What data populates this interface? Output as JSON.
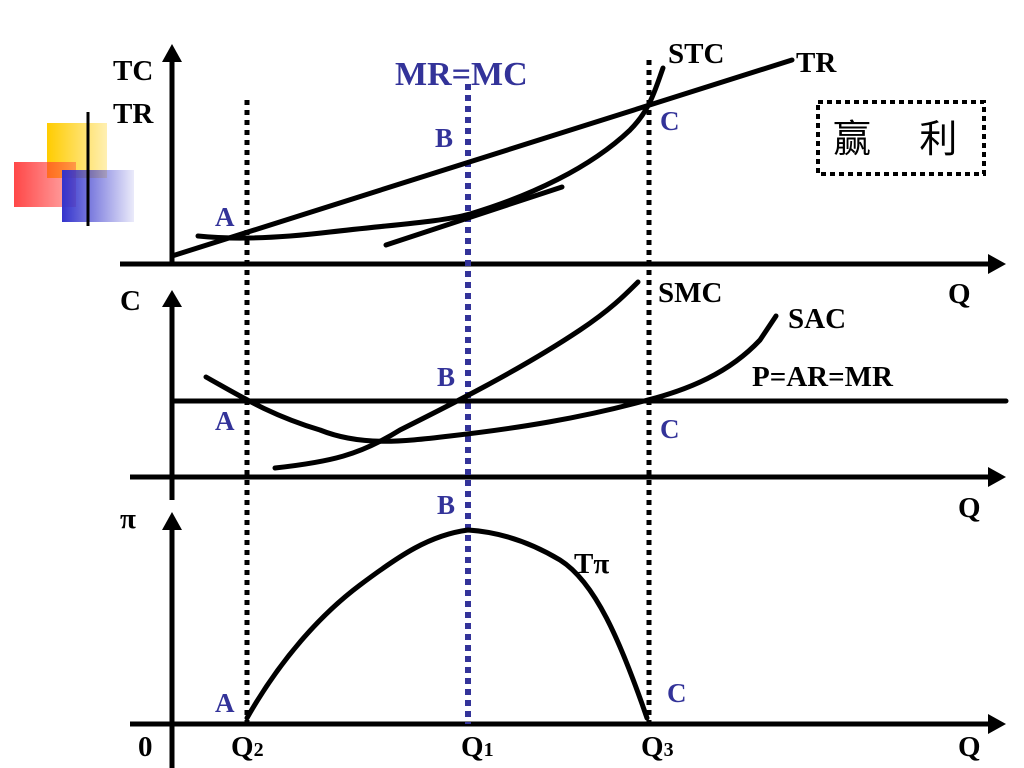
{
  "slide": {
    "title_box": "赢    利",
    "mr_mc_label": "MR=MC"
  },
  "top_panel": {
    "y_axis_labels": [
      "TC",
      "TR"
    ],
    "x_axis_label": "Q",
    "curve_labels": {
      "stc": "STC",
      "tr": "TR"
    },
    "points": {
      "a": "A",
      "b": "B",
      "c": "C"
    }
  },
  "middle_panel": {
    "y_axis_label": "C",
    "x_axis_label": "Q",
    "curve_labels": {
      "smc": "SMC",
      "sac": "SAC",
      "price": "P=AR=MR"
    },
    "points": {
      "a": "A",
      "b": "B",
      "c": "C"
    }
  },
  "bottom_panel": {
    "y_axis_label": "π",
    "x_axis_label": "Q",
    "origin_label": "0",
    "curve_label": "Tπ",
    "points": {
      "a": "A",
      "b": "B",
      "c": "C"
    },
    "x_ticks": {
      "q2_main": "Q",
      "q2_sub": "2",
      "q1_main": "Q",
      "q1_sub": "1",
      "q3_main": "Q",
      "q3_sub": "3"
    }
  },
  "colors": {
    "accent_blue": "#333399",
    "deco_yellow": "#ffcc00",
    "deco_red": "#ff3333",
    "deco_blue": "#3333cc"
  }
}
